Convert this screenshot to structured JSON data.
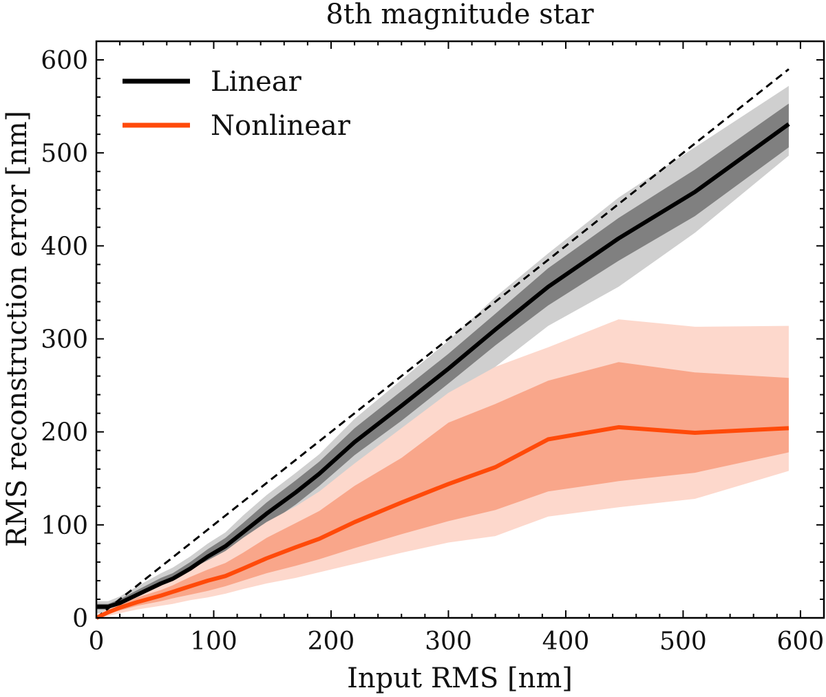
{
  "chart_data": {
    "type": "line",
    "title": "8th magnitude star",
    "xlabel": "Input RMS [nm]",
    "ylabel": "RMS reconstruction error [nm]",
    "xlim": [
      0,
      620
    ],
    "ylim": [
      0,
      620
    ],
    "xticks": [
      0,
      100,
      200,
      300,
      400,
      500,
      600
    ],
    "yticks": [
      0,
      100,
      200,
      300,
      400,
      500,
      600
    ],
    "legend_position": "top-left",
    "reference_line": {
      "style": "dashed",
      "color": "#000000",
      "x": [
        0,
        590
      ],
      "y": [
        0,
        590
      ]
    },
    "series": [
      {
        "name": "Linear",
        "color": "#000000",
        "band_inner_color": "#808080",
        "band_outer_color": "#cfcfcf",
        "x": [
          0,
          10,
          20,
          35,
          55,
          65,
          80,
          95,
          110,
          125,
          145,
          170,
          190,
          220,
          260,
          300,
          340,
          385,
          445,
          510,
          590
        ],
        "y": [
          12,
          12,
          16,
          25,
          37,
          42,
          53,
          66,
          77,
          92,
          112,
          135,
          155,
          189,
          228,
          268,
          310,
          356,
          408,
          458,
          531
        ],
        "inner_low": [
          9,
          9,
          12,
          20,
          31,
          36,
          46,
          58,
          68,
          82,
          100,
          122,
          142,
          175,
          212,
          252,
          293,
          336,
          384,
          432,
          506
        ],
        "inner_high": [
          15,
          15,
          20,
          30,
          43,
          48,
          60,
          74,
          86,
          102,
          124,
          148,
          168,
          204,
          244,
          284,
          327,
          376,
          430,
          482,
          553
        ],
        "outer_low": [
          5,
          5,
          8,
          15,
          25,
          30,
          38,
          50,
          60,
          72,
          88,
          108,
          128,
          160,
          198,
          238,
          270,
          314,
          356,
          414,
          497
        ],
        "outer_high": [
          18,
          18,
          23,
          34,
          48,
          54,
          66,
          80,
          92,
          110,
          132,
          156,
          176,
          214,
          256,
          298,
          345,
          392,
          452,
          506,
          572
        ]
      },
      {
        "name": "Nonlinear",
        "color": "#ff4a0a",
        "band_inner_color": "#f9a68a",
        "band_outer_color": "#fdd8cc",
        "x": [
          0,
          10,
          20,
          35,
          55,
          65,
          80,
          95,
          110,
          125,
          145,
          170,
          190,
          220,
          260,
          300,
          340,
          385,
          445,
          510,
          590
        ],
        "y": [
          0,
          6,
          11,
          17,
          24,
          28,
          34,
          40,
          45,
          53,
          64,
          76,
          85,
          103,
          124,
          144,
          162,
          192,
          205,
          199,
          204
        ],
        "inner_low": [
          0,
          4,
          8,
          13,
          18,
          21,
          25,
          29,
          34,
          40,
          48,
          56,
          63,
          75,
          90,
          104,
          116,
          136,
          147,
          156,
          178
        ],
        "inner_high": [
          1,
          8,
          14,
          22,
          30,
          35,
          44,
          52,
          59,
          70,
          86,
          102,
          115,
          142,
          172,
          210,
          230,
          255,
          275,
          264,
          258
        ],
        "outer_low": [
          0,
          2,
          5,
          9,
          13,
          15,
          19,
          22,
          26,
          31,
          37,
          43,
          49,
          58,
          70,
          81,
          88,
          109,
          119,
          128,
          158
        ],
        "outer_high": [
          2,
          10,
          17,
          26,
          36,
          42,
          52,
          62,
          72,
          86,
          103,
          120,
          136,
          166,
          204,
          242,
          270,
          291,
          321,
          313,
          314
        ]
      }
    ]
  }
}
